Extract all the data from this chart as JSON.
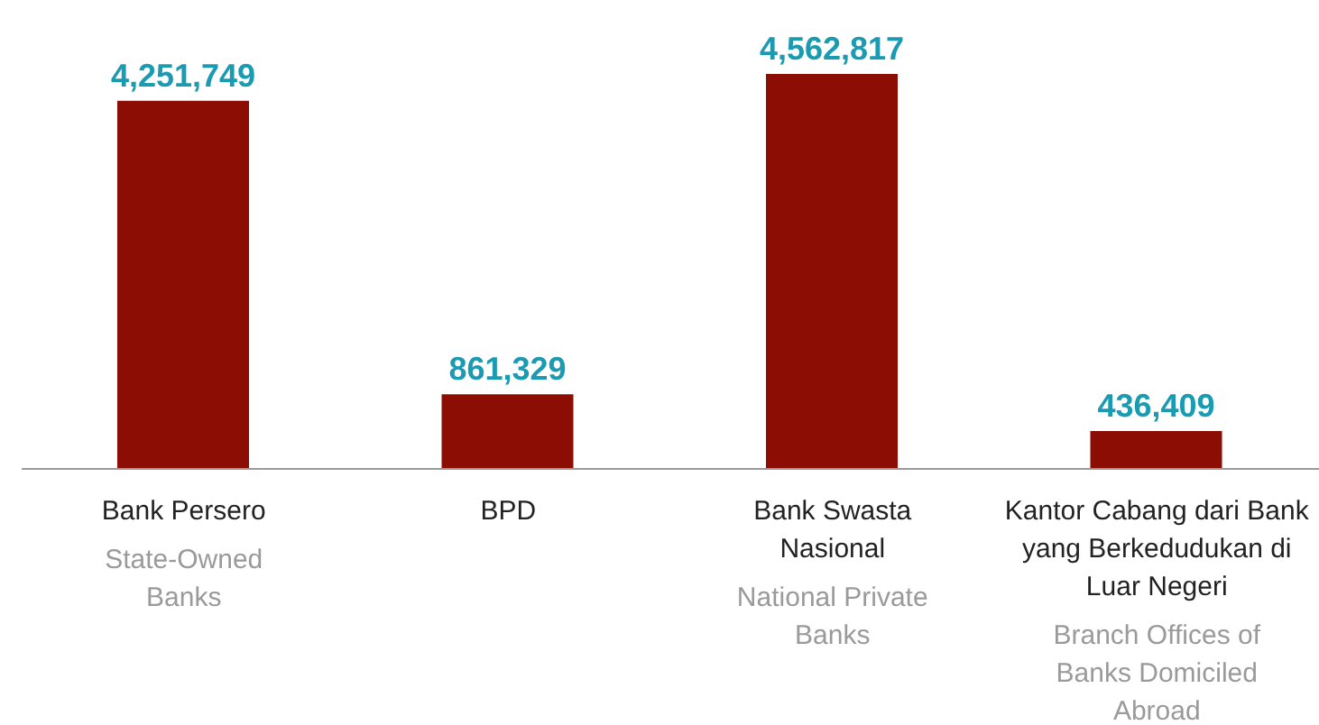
{
  "chart_data": {
    "type": "bar",
    "categories": [
      "Bank Persero\n\nState-Owned\nBanks",
      "BPD",
      "Bank Swasta\nNasional\n\nNational Private\nBanks",
      "Kantor Cabang dari Bank\nyang Berkedudukan di\nLuar Negeri\n\nBranch Offices of\nBanks Domiciled\nAbroad"
    ],
    "values": [
      4251749,
      861329,
      4562817,
      436409
    ],
    "value_labels": [
      "4,251,749",
      "861,329",
      "4,562,817",
      "436,409"
    ],
    "color": "#8b0d03"
  }
}
